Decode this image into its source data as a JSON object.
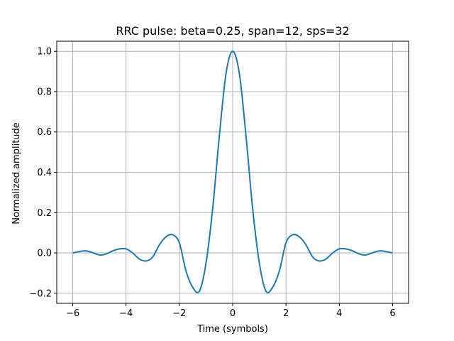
{
  "chart_data": {
    "type": "line",
    "title": "RRC pulse: beta=0.25, span=12, sps=32",
    "xlabel": "Time (symbols)",
    "ylabel": "Normalized amplitude",
    "xlim": [
      -6.6,
      6.6
    ],
    "ylim": [
      -0.25,
      1.05
    ],
    "grid": true,
    "legend": "none",
    "xticks": [
      -6,
      -4,
      -2,
      0,
      2,
      4,
      6
    ],
    "xtick_labels": [
      "−6",
      "−4",
      "−2",
      "0",
      "2",
      "4",
      "6"
    ],
    "yticks": [
      -0.2,
      0.0,
      0.2,
      0.4,
      0.6,
      0.8,
      1.0
    ],
    "ytick_labels": [
      "−0.2",
      "0.0",
      "0.2",
      "0.4",
      "0.6",
      "0.8",
      "1.0"
    ],
    "series": [
      {
        "color": "#1f77b4",
        "x": [
          -6.0,
          -5.5,
          -5.0,
          -4.75,
          -4.5,
          -4.25,
          -4.0,
          -3.75,
          -3.5,
          -3.25,
          -3.0,
          -2.75,
          -2.5,
          -2.25,
          -2.0,
          -1.75,
          -1.5,
          -1.25,
          -1.0,
          -0.75,
          -0.5,
          -0.25,
          0.0,
          0.25,
          0.5,
          0.75,
          1.0,
          1.25,
          1.5,
          1.75,
          2.0,
          2.25,
          2.5,
          2.75,
          3.0,
          3.25,
          3.5,
          3.75,
          4.0,
          4.25,
          4.5,
          4.75,
          5.0,
          5.5,
          6.0
        ],
        "y": [
          0.0,
          0.01,
          -0.01,
          -0.005,
          0.01,
          0.02,
          0.02,
          0.0,
          -0.03,
          -0.04,
          -0.02,
          0.04,
          0.08,
          0.09,
          0.05,
          -0.09,
          -0.17,
          -0.19,
          -0.05,
          0.22,
          0.58,
          0.89,
          1.0,
          0.89,
          0.58,
          0.22,
          -0.05,
          -0.19,
          -0.17,
          -0.09,
          0.05,
          0.09,
          0.08,
          0.04,
          -0.02,
          -0.04,
          -0.03,
          0.0,
          0.02,
          0.02,
          0.01,
          -0.005,
          -0.01,
          0.01,
          0.0
        ]
      }
    ]
  }
}
